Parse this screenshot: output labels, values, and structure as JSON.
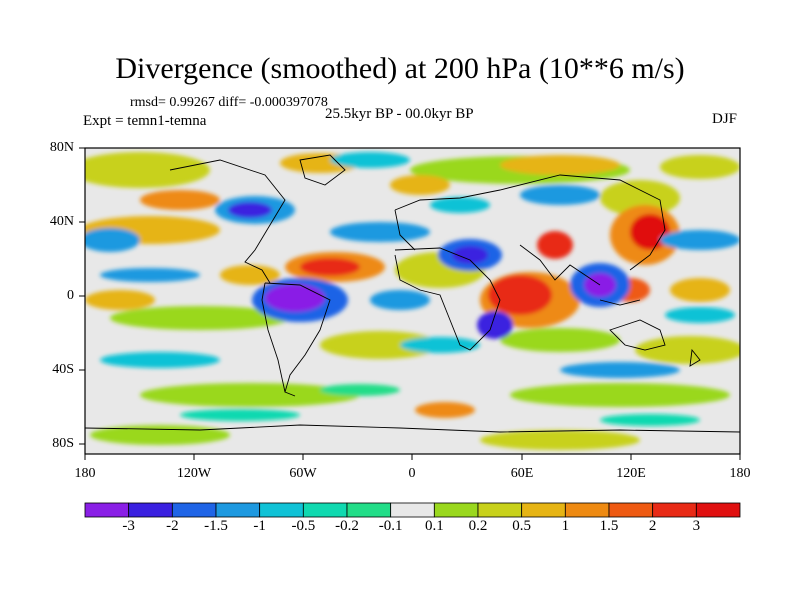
{
  "title": "Divergence (smoothed) at 200 hPa (10**6 m/s)",
  "stats": "rmsd= 0.99267 diff= -0.000397078",
  "experiment": "Expt = temn1-temna",
  "period": "25.5kyr BP - 00.0kyr BP",
  "season": "DJF",
  "lat_labels": [
    "80N",
    "40N",
    "0",
    "40S",
    "80S"
  ],
  "lon_labels": [
    "180",
    "120W",
    "60W",
    "0",
    "60E",
    "120E",
    "180"
  ],
  "colorbar": {
    "colors": [
      "#8a1fe6",
      "#3a20e0",
      "#1f64e6",
      "#1e99e0",
      "#10c2d6",
      "#10d9b0",
      "#22dd88",
      "#e8e8e8",
      "#9ad81e",
      "#c8d11b",
      "#e6b414",
      "#ee8a12",
      "#ee5a12",
      "#e82a16",
      "#e01010"
    ],
    "labels": [
      "-3",
      "-2",
      "-1.5",
      "-1",
      "-0.5",
      "-0.2",
      "-0.1",
      "0.1",
      "0.2",
      "0.5",
      "1",
      "1.5",
      "2",
      "3"
    ]
  }
}
